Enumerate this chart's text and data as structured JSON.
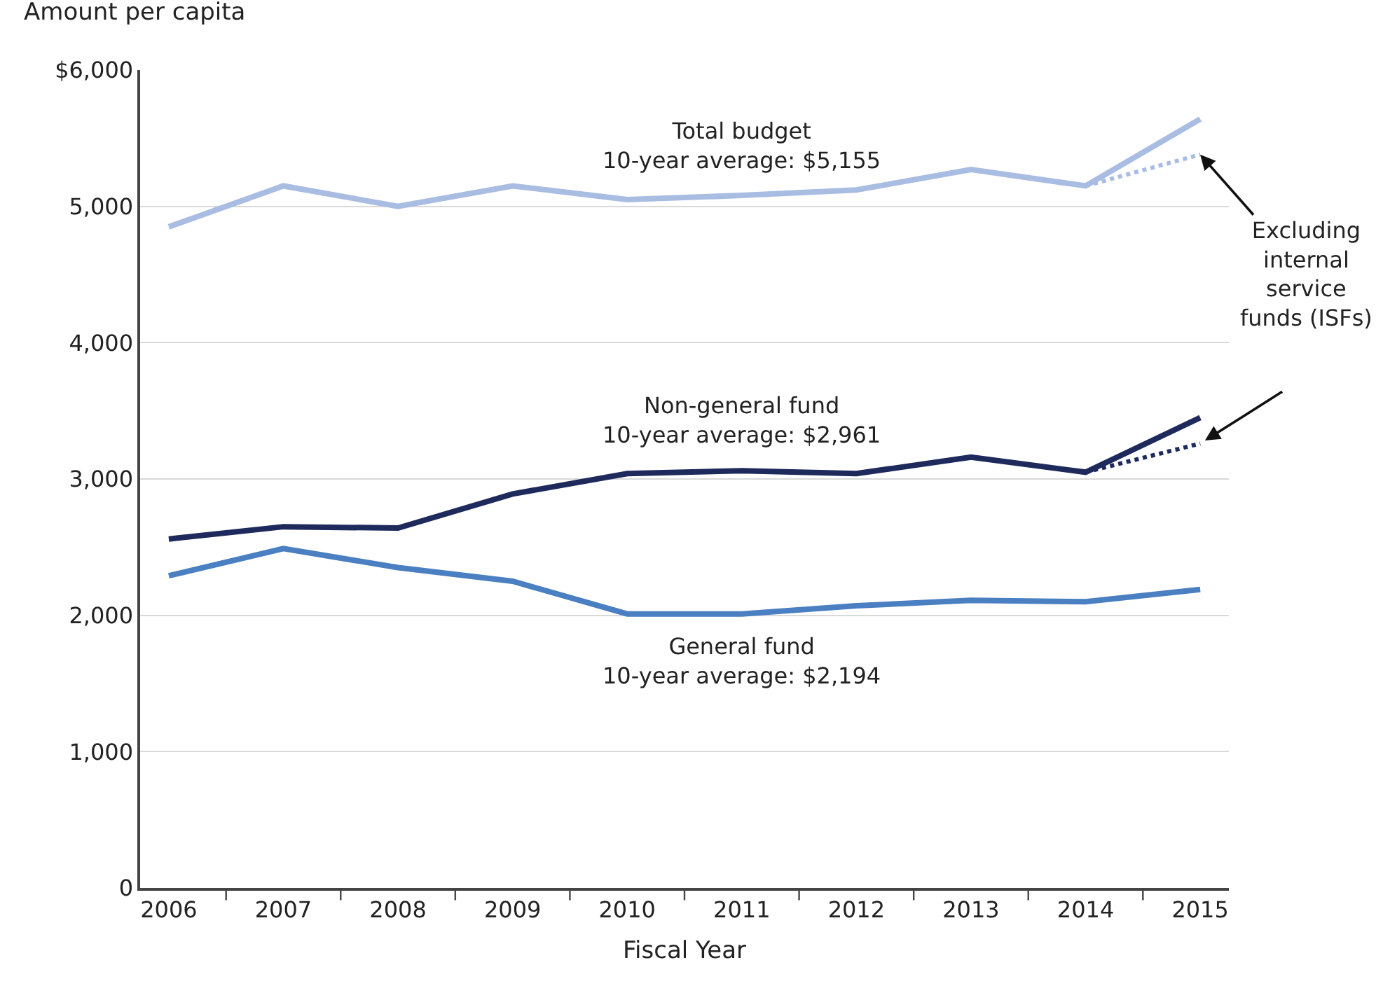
{
  "chart_data": {
    "type": "line",
    "xlabel": "Fiscal Year",
    "ylabel": "Amount per capita",
    "categories": [
      "2006",
      "2007",
      "2008",
      "2009",
      "2010",
      "2011",
      "2012",
      "2013",
      "2014",
      "2015"
    ],
    "series": [
      {
        "name": "Total budget\n10-year average: $5,155",
        "color": "#a9bde3",
        "values": [
          4850,
          5150,
          5000,
          5150,
          5050,
          5080,
          5120,
          5270,
          5150,
          5640
        ]
      },
      {
        "name": "Non-general fund\n10-year average: $2,961",
        "color": "#1f2a5c",
        "values": [
          2560,
          2650,
          2640,
          2890,
          3040,
          3060,
          3040,
          3160,
          3050,
          3450
        ]
      },
      {
        "name": "General fund\n10-year average: $2,194",
        "color": "#4a7fc1",
        "values": [
          2290,
          2490,
          2350,
          2250,
          2010,
          2010,
          2070,
          2110,
          2100,
          2190
        ]
      },
      {
        "color": "#a9bde3",
        "values": [
          null,
          null,
          null,
          null,
          null,
          null,
          null,
          null,
          5150,
          5380
        ],
        "line_style": "dotted"
      },
      {
        "color": "#1f2a5c",
        "values": [
          null,
          null,
          null,
          null,
          null,
          null,
          null,
          null,
          3050,
          3260
        ],
        "line_style": "dotted"
      }
    ],
    "annotations": [
      {
        "text": "Excluding\ninternal\nservice\nfunds (ISFs)",
        "x": "2015",
        "y": 5380
      }
    ],
    "ylim": [
      0,
      6000
    ],
    "yticks": [
      {
        "value": 0,
        "label": "0"
      },
      {
        "value": 1000,
        "label": "1,000"
      },
      {
        "value": 2000,
        "label": "2,000"
      },
      {
        "value": 3000,
        "label": "3,000"
      },
      {
        "value": 4000,
        "label": "4,000"
      },
      {
        "value": 5000,
        "label": "5,000"
      },
      {
        "value": 6000,
        "label": "$6,000"
      }
    ],
    "grid": "y",
    "legend": false,
    "marker": "none",
    "line_style": "solid"
  }
}
